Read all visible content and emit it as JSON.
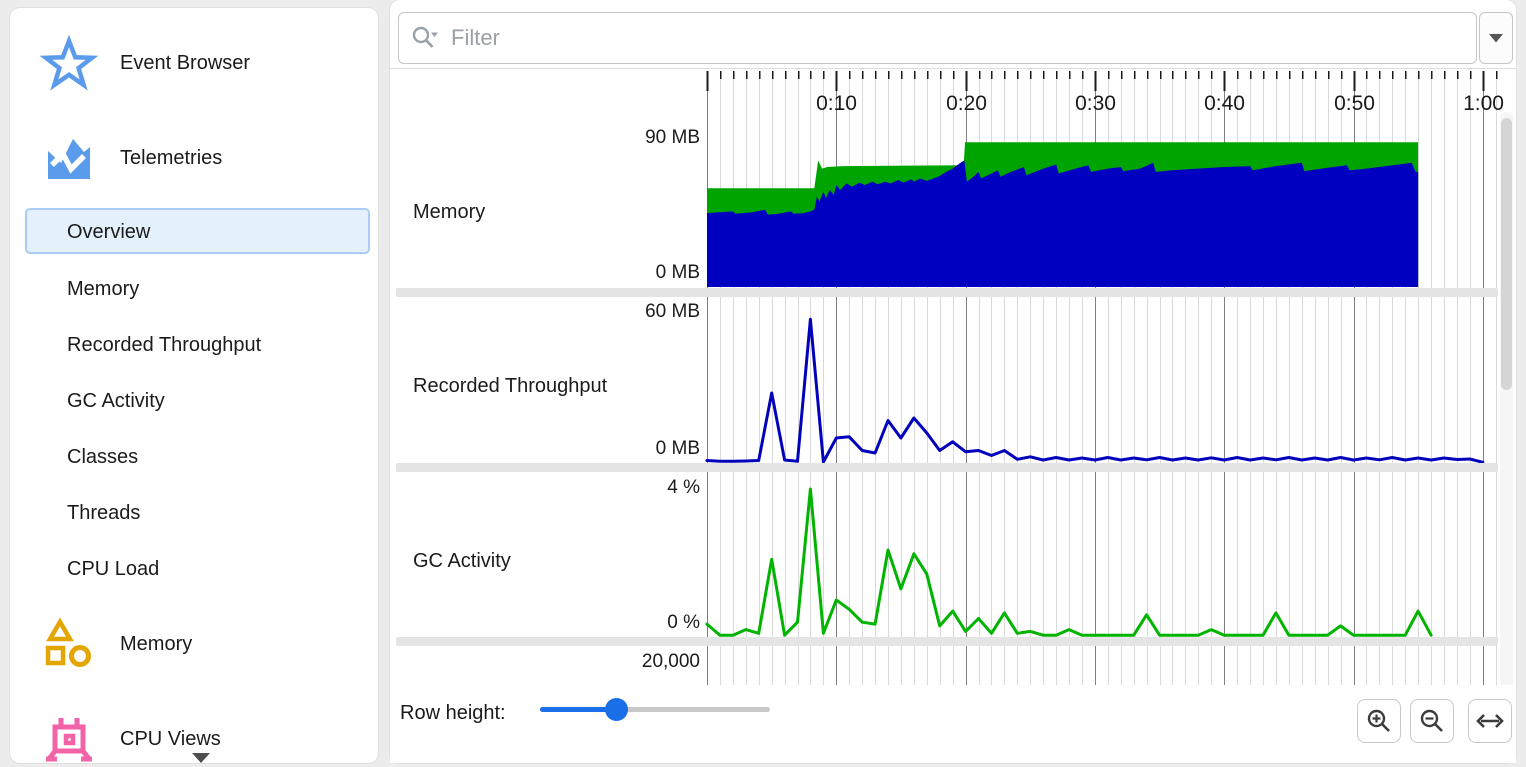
{
  "sidebar": {
    "groups": [
      {
        "label": "Event Browser",
        "icon": "star-icon"
      },
      {
        "label": "Telemetries",
        "icon": "telemetry-chart-icon"
      }
    ],
    "telemetry_items": [
      {
        "label": "Overview",
        "selected": true
      },
      {
        "label": "Memory",
        "selected": false
      },
      {
        "label": "Recorded Throughput",
        "selected": false
      },
      {
        "label": "GC Activity",
        "selected": false
      },
      {
        "label": "Classes",
        "selected": false
      },
      {
        "label": "Threads",
        "selected": false
      },
      {
        "label": "CPU Load",
        "selected": false
      }
    ],
    "bottom_groups": [
      {
        "label": "Memory",
        "icon": "memory-shapes-icon"
      },
      {
        "label": "CPU Views",
        "icon": "cpu-chip-icon"
      }
    ]
  },
  "toolbar": {
    "filter_placeholder": "Filter"
  },
  "bottom_bar": {
    "row_height_label": "Row height:",
    "row_height_position": 0.33
  },
  "colors": {
    "accent_blue": "#5b9beb",
    "selection_bg": "#e4f1fd",
    "selection_border": "#a9cdf4",
    "memory_committed_green": "#00a400",
    "memory_used_blue": "#0000c0",
    "throughput_blue": "#0202bd",
    "gc_green": "#00b400",
    "slider_blue": "#1a6fe8",
    "grid_minor": "#d9d9d9",
    "grid_major": "#7f7f7f",
    "icon_yellow": "#e3a600",
    "icon_pink": "#f263a8"
  },
  "time_axis": {
    "end_s": 61,
    "minor_interval_s": 1,
    "major_interval_s": 10,
    "labels": [
      {
        "t": 10,
        "text": "0:10"
      },
      {
        "t": 20,
        "text": "0:20"
      },
      {
        "t": 30,
        "text": "0:30"
      },
      {
        "t": 40,
        "text": "0:40"
      },
      {
        "t": 50,
        "text": "0:50"
      },
      {
        "t": 60,
        "text": "1:00"
      }
    ]
  },
  "chart_data": [
    {
      "type": "area",
      "title": "Memory",
      "unit": "MB",
      "ylim": [
        0,
        90
      ],
      "ytick_top": "90 MB",
      "ytick_bottom": "0 MB",
      "series": [
        {
          "color": "#00a400",
          "points": [
            [
              0,
              60
            ],
            [
              8.3,
              60
            ],
            [
              8.6,
              77
            ],
            [
              8.9,
              72
            ],
            [
              9.3,
              73
            ],
            [
              10.5,
              73.5
            ],
            [
              19.85,
              74
            ],
            [
              19.95,
              88
            ],
            [
              55,
              88
            ]
          ]
        },
        {
          "color": "#0000c0",
          "points": [
            [
              0,
              45
            ],
            [
              1,
              45.5
            ],
            [
              2,
              46
            ],
            [
              2.2,
              44.5
            ],
            [
              3.5,
              45.5
            ],
            [
              4.5,
              47
            ],
            [
              4.7,
              44
            ],
            [
              5.5,
              44.5
            ],
            [
              6.5,
              46
            ],
            [
              6.7,
              44.5
            ],
            [
              7.5,
              45
            ],
            [
              8,
              46
            ],
            [
              8.3,
              47
            ],
            [
              8.5,
              55
            ],
            [
              8.7,
              52
            ],
            [
              9,
              58
            ],
            [
              9.2,
              54
            ],
            [
              9.5,
              59
            ],
            [
              9.8,
              56
            ],
            [
              10,
              62
            ],
            [
              10.3,
              59
            ],
            [
              10.8,
              63
            ],
            [
              11.2,
              61
            ],
            [
              11.8,
              63.5
            ],
            [
              12.2,
              62
            ],
            [
              12.8,
              64
            ],
            [
              13.2,
              62.5
            ],
            [
              13.8,
              64
            ],
            [
              14.2,
              63
            ],
            [
              14.8,
              65
            ],
            [
              15.2,
              63.5
            ],
            [
              15.8,
              65.5
            ],
            [
              16,
              64
            ],
            [
              16.5,
              66
            ],
            [
              17,
              64.5
            ],
            [
              17.5,
              66
            ],
            [
              18,
              67.5
            ],
            [
              18.5,
              70
            ],
            [
              19,
              72
            ],
            [
              19.5,
              75
            ],
            [
              19.9,
              77
            ],
            [
              20.1,
              64
            ],
            [
              20.6,
              67
            ],
            [
              21,
              70
            ],
            [
              21.2,
              66
            ],
            [
              22,
              69
            ],
            [
              22.5,
              71
            ],
            [
              22.7,
              67
            ],
            [
              23.5,
              70
            ],
            [
              24.5,
              73
            ],
            [
              24.7,
              68
            ],
            [
              26,
              72
            ],
            [
              27,
              74.5
            ],
            [
              27.2,
              69
            ],
            [
              28.5,
              72
            ],
            [
              29.5,
              74
            ],
            [
              29.7,
              70
            ],
            [
              31,
              72
            ],
            [
              32,
              73
            ],
            [
              32.2,
              70.5
            ],
            [
              33.5,
              72
            ],
            [
              34.5,
              75.5
            ],
            [
              34.7,
              70
            ],
            [
              36,
              71
            ],
            [
              38,
              72
            ],
            [
              40,
              73
            ],
            [
              42,
              73.5
            ],
            [
              42.2,
              71
            ],
            [
              44,
              73.5
            ],
            [
              46,
              75.5
            ],
            [
              46.2,
              70.5
            ],
            [
              48,
              72.5
            ],
            [
              49.5,
              74
            ],
            [
              49.7,
              71
            ],
            [
              51,
              72
            ],
            [
              53,
              74
            ],
            [
              54.5,
              75.5
            ],
            [
              54.8,
              70
            ],
            [
              55,
              70
            ]
          ]
        }
      ]
    },
    {
      "type": "line",
      "title": "Recorded Throughput",
      "unit": "MB",
      "ylim": [
        0,
        60
      ],
      "ytick_top": "60 MB",
      "ytick_bottom": "0 MB",
      "series": [
        {
          "color": "#0202bd",
          "points": [
            [
              0,
              1
            ],
            [
              1,
              0.7
            ],
            [
              2,
              0.7
            ],
            [
              3,
              0.8
            ],
            [
              4,
              1
            ],
            [
              5,
              28
            ],
            [
              6,
              1.2
            ],
            [
              7,
              0.7
            ],
            [
              8,
              57.5
            ],
            [
              9,
              0.4
            ],
            [
              10,
              10
            ],
            [
              11,
              10.5
            ],
            [
              12,
              5
            ],
            [
              13,
              4
            ],
            [
              14,
              17
            ],
            [
              15,
              10
            ],
            [
              16,
              18
            ],
            [
              17,
              12
            ],
            [
              18,
              5
            ],
            [
              19,
              8.5
            ],
            [
              20,
              4.5
            ],
            [
              21,
              5
            ],
            [
              22,
              3
            ],
            [
              23,
              5
            ],
            [
              24,
              1.5
            ],
            [
              25,
              2.5
            ],
            [
              26,
              1.2
            ],
            [
              27,
              2.2
            ],
            [
              28,
              1.2
            ],
            [
              29,
              2
            ],
            [
              30,
              1.2
            ],
            [
              31,
              2.2
            ],
            [
              32,
              1.2
            ],
            [
              33,
              2
            ],
            [
              34,
              1.3
            ],
            [
              35,
              2.2
            ],
            [
              36,
              1.2
            ],
            [
              37,
              2
            ],
            [
              38,
              1.2
            ],
            [
              39,
              2.1
            ],
            [
              40,
              1.2
            ],
            [
              41,
              2.2
            ],
            [
              42,
              1.2
            ],
            [
              43,
              2
            ],
            [
              44,
              1.3
            ],
            [
              45,
              2.2
            ],
            [
              46,
              1.2
            ],
            [
              47,
              2
            ],
            [
              48,
              1.2
            ],
            [
              49,
              2.2
            ],
            [
              50,
              1.2
            ],
            [
              51,
              2
            ],
            [
              52,
              1.3
            ],
            [
              53,
              2.2
            ],
            [
              54,
              1.2
            ],
            [
              55,
              2
            ],
            [
              56,
              1.2
            ],
            [
              57,
              2
            ],
            [
              58,
              1.4
            ],
            [
              59,
              1.6
            ],
            [
              60,
              0.3
            ]
          ]
        }
      ]
    },
    {
      "type": "line",
      "title": "GC Activity",
      "unit": "%",
      "ylim": [
        0,
        4
      ],
      "ytick_top": "4 %",
      "ytick_bottom": "0 %",
      "series": [
        {
          "color": "#00b400",
          "points": [
            [
              0,
              0.35
            ],
            [
              1,
              0.05
            ],
            [
              2,
              0.05
            ],
            [
              3,
              0.2
            ],
            [
              4,
              0.1
            ],
            [
              5,
              2.1
            ],
            [
              6,
              0.05
            ],
            [
              7,
              0.4
            ],
            [
              8,
              4.0
            ],
            [
              9,
              0.1
            ],
            [
              10,
              1.0
            ],
            [
              11,
              0.75
            ],
            [
              12,
              0.4
            ],
            [
              13,
              0.35
            ],
            [
              14,
              2.35
            ],
            [
              15,
              1.3
            ],
            [
              16,
              2.25
            ],
            [
              17,
              1.7
            ],
            [
              18,
              0.3
            ],
            [
              19,
              0.7
            ],
            [
              20,
              0.15
            ],
            [
              21,
              0.5
            ],
            [
              22,
              0.1
            ],
            [
              23,
              0.65
            ],
            [
              24,
              0.1
            ],
            [
              25,
              0.15
            ],
            [
              26,
              0.05
            ],
            [
              27,
              0.05
            ],
            [
              28,
              0.2
            ],
            [
              29,
              0.05
            ],
            [
              30,
              0.05
            ],
            [
              31,
              0.05
            ],
            [
              32,
              0.05
            ],
            [
              33,
              0.05
            ],
            [
              34,
              0.6
            ],
            [
              35,
              0.05
            ],
            [
              36,
              0.05
            ],
            [
              37,
              0.05
            ],
            [
              38,
              0.05
            ],
            [
              39,
              0.2
            ],
            [
              40,
              0.05
            ],
            [
              41,
              0.05
            ],
            [
              42,
              0.05
            ],
            [
              43,
              0.05
            ],
            [
              44,
              0.65
            ],
            [
              45,
              0.05
            ],
            [
              46,
              0.05
            ],
            [
              47,
              0.05
            ],
            [
              48,
              0.05
            ],
            [
              49,
              0.3
            ],
            [
              50,
              0.05
            ],
            [
              51,
              0.05
            ],
            [
              52,
              0.05
            ],
            [
              53,
              0.05
            ],
            [
              54,
              0.05
            ],
            [
              55,
              0.7
            ],
            [
              56,
              0.05
            ]
          ]
        }
      ]
    },
    {
      "type": "line",
      "title": "",
      "partial": true,
      "ytick_top": "20,000",
      "series": []
    }
  ]
}
